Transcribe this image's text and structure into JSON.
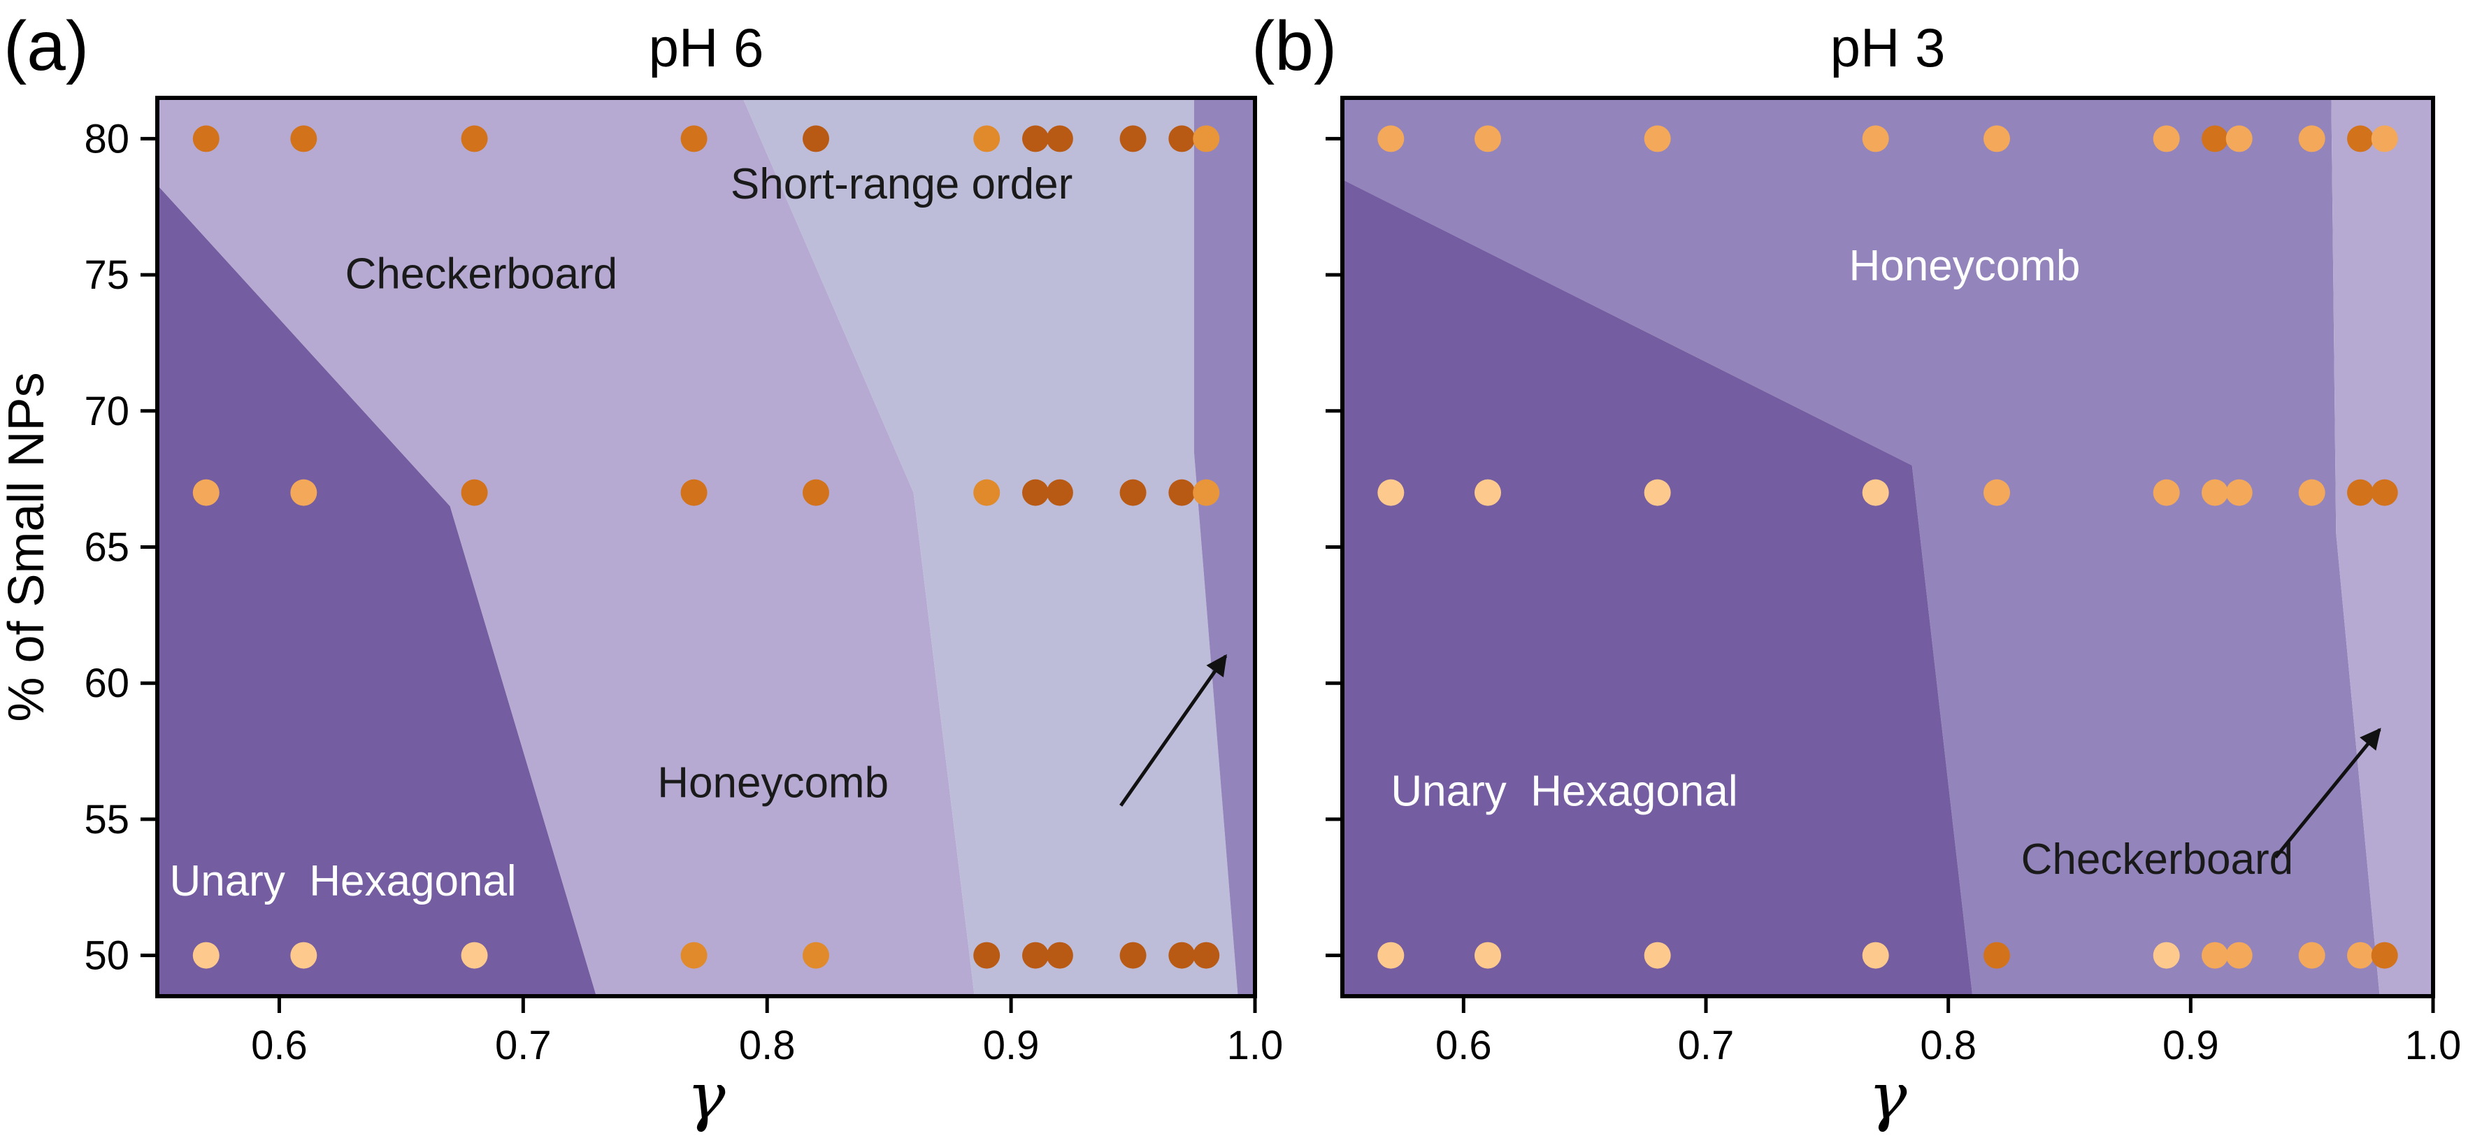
{
  "chart_data": [
    {
      "type": "scatter",
      "panel_label": "(a)",
      "title": "pH 6",
      "xlabel": "γ",
      "ylabel": "% of Small NPs",
      "xlim": [
        0.55,
        1.0
      ],
      "ylim": [
        48.5,
        81.5
      ],
      "xticks": [
        "0.6",
        "0.7",
        "0.8",
        "0.9",
        "1.0"
      ],
      "yticks": [
        "50",
        "55",
        "60",
        "65",
        "70",
        "75",
        "80"
      ],
      "grid": false,
      "regions": [
        {
          "name": "Unary Hexagonal",
          "color": "#745da0",
          "polygon": [
            [
              0.55,
              48.5
            ],
            [
              0.73,
              48.5
            ],
            [
              0.67,
              66.5
            ],
            [
              0.55,
              78.3
            ]
          ]
        },
        {
          "name": "Checkerboard",
          "color": "#b6aad3",
          "polygon": [
            [
              0.55,
              78.3
            ],
            [
              0.67,
              66.5
            ],
            [
              0.73,
              48.5
            ],
            [
              0.885,
              48.5
            ],
            [
              0.86,
              67.0
            ],
            [
              0.79,
              81.5
            ],
            [
              0.55,
              81.5
            ]
          ]
        },
        {
          "name": "Short-range order",
          "color": "#bdbdd9",
          "polygon": [
            [
              0.79,
              81.5
            ],
            [
              0.86,
              67.0
            ],
            [
              0.885,
              48.5
            ],
            [
              0.993,
              48.5
            ],
            [
              0.975,
              68.5
            ],
            [
              0.975,
              81.5
            ]
          ]
        },
        {
          "name": "Honeycomb",
          "color": "#9385bb",
          "polygon": [
            [
              0.975,
              81.5
            ],
            [
              0.975,
              68.5
            ],
            [
              0.993,
              48.5
            ],
            [
              1.0,
              48.5
            ],
            [
              1.0,
              81.5
            ]
          ]
        }
      ],
      "region_labels": [
        {
          "text": "Unary  Hexagonal",
          "x": 0.555,
          "y": 52.2,
          "color": "#ffffff"
        },
        {
          "text": "Checkerboard",
          "x": 0.627,
          "y": 74.5,
          "color": "#1a1a1a"
        },
        {
          "text": "Short-range order",
          "x": 0.785,
          "y": 77.8,
          "color": "#1a1a1a"
        },
        {
          "text": "Honeycomb",
          "x": 0.755,
          "y": 55.8,
          "color": "#1a1a1a"
        }
      ],
      "arrow": {
        "from": [
          0.945,
          55.5
        ],
        "to": [
          0.988,
          61.0
        ]
      },
      "points": [
        {
          "x": 0.57,
          "y": 80,
          "color": "#d2721a"
        },
        {
          "x": 0.61,
          "y": 80,
          "color": "#d2721a"
        },
        {
          "x": 0.68,
          "y": 80,
          "color": "#d2721a"
        },
        {
          "x": 0.77,
          "y": 80,
          "color": "#d2721a"
        },
        {
          "x": 0.82,
          "y": 80,
          "color": "#b95a14"
        },
        {
          "x": 0.89,
          "y": 80,
          "color": "#e08a2c"
        },
        {
          "x": 0.91,
          "y": 80,
          "color": "#b95a14"
        },
        {
          "x": 0.92,
          "y": 80,
          "color": "#b95a14"
        },
        {
          "x": 0.95,
          "y": 80,
          "color": "#b95a14"
        },
        {
          "x": 0.97,
          "y": 80,
          "color": "#b95a14"
        },
        {
          "x": 0.98,
          "y": 80,
          "color": "#e9963a"
        },
        {
          "x": 0.57,
          "y": 67,
          "color": "#f4a85a"
        },
        {
          "x": 0.61,
          "y": 67,
          "color": "#f4a85a"
        },
        {
          "x": 0.68,
          "y": 67,
          "color": "#d2721a"
        },
        {
          "x": 0.77,
          "y": 67,
          "color": "#d2721a"
        },
        {
          "x": 0.82,
          "y": 67,
          "color": "#d2721a"
        },
        {
          "x": 0.89,
          "y": 67,
          "color": "#e08a2c"
        },
        {
          "x": 0.91,
          "y": 67,
          "color": "#b95a14"
        },
        {
          "x": 0.92,
          "y": 67,
          "color": "#b95a14"
        },
        {
          "x": 0.95,
          "y": 67,
          "color": "#b95a14"
        },
        {
          "x": 0.97,
          "y": 67,
          "color": "#b95a14"
        },
        {
          "x": 0.98,
          "y": 67,
          "color": "#e9963a"
        },
        {
          "x": 0.57,
          "y": 50,
          "color": "#fdc98c"
        },
        {
          "x": 0.61,
          "y": 50,
          "color": "#fdc98c"
        },
        {
          "x": 0.68,
          "y": 50,
          "color": "#fdc98c"
        },
        {
          "x": 0.77,
          "y": 50,
          "color": "#e08a2c"
        },
        {
          "x": 0.82,
          "y": 50,
          "color": "#e08a2c"
        },
        {
          "x": 0.89,
          "y": 50,
          "color": "#b95a14"
        },
        {
          "x": 0.91,
          "y": 50,
          "color": "#b95a14"
        },
        {
          "x": 0.92,
          "y": 50,
          "color": "#b95a14"
        },
        {
          "x": 0.95,
          "y": 50,
          "color": "#b95a14"
        },
        {
          "x": 0.97,
          "y": 50,
          "color": "#b95a14"
        },
        {
          "x": 0.98,
          "y": 50,
          "color": "#b95a14"
        }
      ]
    },
    {
      "type": "scatter",
      "panel_label": "(b)",
      "title": "pH 3",
      "xlabel": "γ",
      "ylabel": "",
      "xlim": [
        0.55,
        1.0
      ],
      "ylim": [
        48.5,
        81.5
      ],
      "xticks": [
        "0.6",
        "0.7",
        "0.8",
        "0.9",
        "1.0"
      ],
      "yticks": [],
      "grid": false,
      "regions": [
        {
          "name": "Honeycomb",
          "color": "#9385bb",
          "polygon": [
            [
              0.55,
              81.5
            ],
            [
              0.958,
              81.5
            ],
            [
              0.96,
              65.5
            ],
            [
              0.978,
              48.5
            ],
            [
              0.81,
              48.5
            ],
            [
              0.785,
              68.0
            ],
            [
              0.55,
              78.5
            ]
          ]
        },
        {
          "name": "Unary Hexagonal",
          "color": "#745da0",
          "polygon": [
            [
              0.55,
              78.5
            ],
            [
              0.785,
              68.0
            ],
            [
              0.81,
              48.5
            ],
            [
              0.55,
              48.5
            ]
          ]
        },
        {
          "name": "Checkerboard",
          "color": "#b6aad3",
          "polygon": [
            [
              0.958,
              81.5
            ],
            [
              1.0,
              81.5
            ],
            [
              1.0,
              48.5
            ],
            [
              0.978,
              48.5
            ],
            [
              0.96,
              65.5
            ]
          ]
        }
      ],
      "region_labels": [
        {
          "text": "Honeycomb",
          "x": 0.759,
          "y": 74.8,
          "color": "#ffffff"
        },
        {
          "text": "Unary  Hexagonal",
          "x": 0.57,
          "y": 55.5,
          "color": "#ffffff"
        },
        {
          "text": "Checkerboard",
          "x": 0.83,
          "y": 53.0,
          "color": "#1a1a1a"
        }
      ],
      "arrow": {
        "from": [
          0.935,
          53.6
        ],
        "to": [
          0.978,
          58.3
        ]
      },
      "points": [
        {
          "x": 0.57,
          "y": 80,
          "color": "#f4a85a"
        },
        {
          "x": 0.61,
          "y": 80,
          "color": "#f4a85a"
        },
        {
          "x": 0.68,
          "y": 80,
          "color": "#f4a85a"
        },
        {
          "x": 0.77,
          "y": 80,
          "color": "#f4a85a"
        },
        {
          "x": 0.82,
          "y": 80,
          "color": "#f4a85a"
        },
        {
          "x": 0.89,
          "y": 80,
          "color": "#f4a85a"
        },
        {
          "x": 0.91,
          "y": 80,
          "color": "#d2721a"
        },
        {
          "x": 0.92,
          "y": 80,
          "color": "#f4a85a"
        },
        {
          "x": 0.95,
          "y": 80,
          "color": "#f4a85a"
        },
        {
          "x": 0.97,
          "y": 80,
          "color": "#d2721a"
        },
        {
          "x": 0.98,
          "y": 80,
          "color": "#f4a85a"
        },
        {
          "x": 0.57,
          "y": 67,
          "color": "#fdc98c"
        },
        {
          "x": 0.61,
          "y": 67,
          "color": "#fdc98c"
        },
        {
          "x": 0.68,
          "y": 67,
          "color": "#fdc98c"
        },
        {
          "x": 0.77,
          "y": 67,
          "color": "#fdc98c"
        },
        {
          "x": 0.82,
          "y": 67,
          "color": "#f4a85a"
        },
        {
          "x": 0.89,
          "y": 67,
          "color": "#f4a85a"
        },
        {
          "x": 0.91,
          "y": 67,
          "color": "#f4a85a"
        },
        {
          "x": 0.92,
          "y": 67,
          "color": "#f4a85a"
        },
        {
          "x": 0.95,
          "y": 67,
          "color": "#f4a85a"
        },
        {
          "x": 0.97,
          "y": 67,
          "color": "#d2721a"
        },
        {
          "x": 0.98,
          "y": 67,
          "color": "#d2721a"
        },
        {
          "x": 0.57,
          "y": 50,
          "color": "#fdc98c"
        },
        {
          "x": 0.61,
          "y": 50,
          "color": "#fdc98c"
        },
        {
          "x": 0.68,
          "y": 50,
          "color": "#fdc98c"
        },
        {
          "x": 0.77,
          "y": 50,
          "color": "#fdc98c"
        },
        {
          "x": 0.82,
          "y": 50,
          "color": "#d2721a"
        },
        {
          "x": 0.89,
          "y": 50,
          "color": "#fdc98c"
        },
        {
          "x": 0.91,
          "y": 50,
          "color": "#f4a85a"
        },
        {
          "x": 0.92,
          "y": 50,
          "color": "#f4a85a"
        },
        {
          "x": 0.95,
          "y": 50,
          "color": "#f4a85a"
        },
        {
          "x": 0.97,
          "y": 50,
          "color": "#f4a85a"
        },
        {
          "x": 0.98,
          "y": 50,
          "color": "#d2721a"
        }
      ]
    }
  ]
}
